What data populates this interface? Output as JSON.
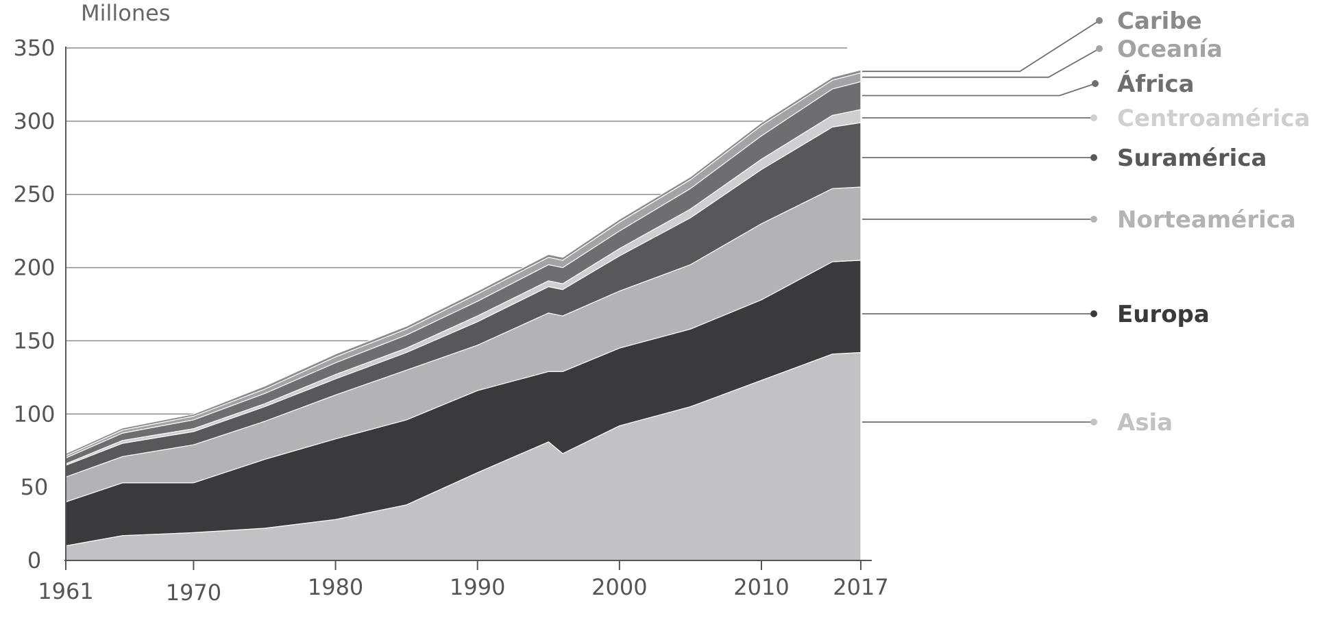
{
  "chart_data": {
    "type": "area",
    "stacked": true,
    "ylabel": "Millones",
    "ylim": [
      0,
      350
    ],
    "xlim": [
      1961,
      2017
    ],
    "y_ticks": [
      0,
      50,
      100,
      150,
      200,
      250,
      300,
      350
    ],
    "x_ticks": [
      1961,
      1970,
      1980,
      1990,
      2000,
      2010,
      2017
    ],
    "grid": true,
    "legend_position": "right",
    "x": [
      1961,
      1965,
      1970,
      1975,
      1980,
      1985,
      1990,
      1995,
      1996,
      2000,
      2005,
      2010,
      2015,
      2017
    ],
    "series": [
      {
        "name": "Asia",
        "color": "#c2c2c4",
        "values": [
          10,
          17,
          19,
          22,
          28,
          38,
          60,
          81,
          73,
          92,
          105,
          123,
          141,
          142
        ]
      },
      {
        "name": "Europa",
        "color": "#3a3a3c",
        "values": [
          30,
          36,
          34,
          47,
          55,
          58,
          56,
          48,
          56,
          53,
          53,
          55,
          63,
          63
        ]
      },
      {
        "name": "Norteamérica",
        "color": "#b3b3b5",
        "values": [
          17,
          18,
          26,
          26,
          30,
          34,
          31,
          40,
          38,
          39,
          44,
          52,
          50,
          50
        ]
      },
      {
        "name": "Suramérica",
        "color": "#58585a",
        "values": [
          8,
          9,
          9,
          10,
          11,
          12,
          16,
          18,
          18,
          24,
          32,
          37,
          42,
          44
        ]
      },
      {
        "name": "Centroamérica",
        "color": "#cfcfd1",
        "values": [
          1,
          2,
          2,
          2,
          3,
          3,
          4,
          4,
          4,
          5,
          6,
          7,
          8,
          9
        ]
      },
      {
        "name": "África",
        "color": "#6e6e70",
        "values": [
          4,
          5,
          6,
          7,
          8,
          9,
          10,
          11,
          11,
          12,
          14,
          16,
          18,
          19
        ]
      },
      {
        "name": "Oceanía",
        "color": "#a3a3a5",
        "values": [
          1.5,
          2,
          2.5,
          3,
          4,
          4,
          5,
          5,
          5,
          6,
          6,
          7,
          6,
          6
        ]
      },
      {
        "name": "Caribe",
        "color": "#8a8a8c",
        "values": [
          1.5,
          1.5,
          1.5,
          2,
          2,
          2,
          2,
          2,
          2,
          2,
          2,
          2,
          2,
          2
        ]
      }
    ],
    "legend_order": [
      "Caribe",
      "Oceanía",
      "África",
      "Centroamérica",
      "Suramérica",
      "Norteamérica",
      "Europa",
      "Asia"
    ]
  }
}
